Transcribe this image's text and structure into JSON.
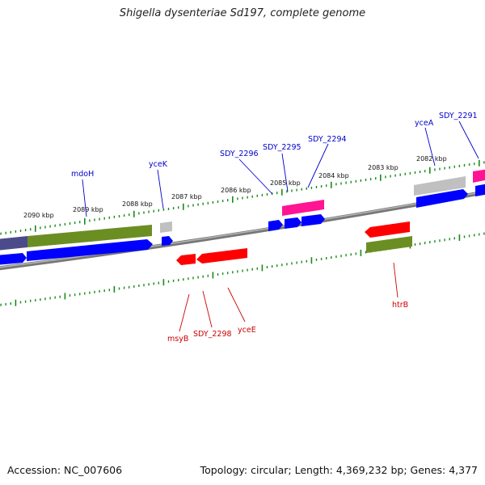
{
  "title": "Shigella dysenteriae Sd197, complete genome",
  "footer": {
    "accession": "Accession: NC_007606",
    "summary": "Topology: circular; Length: 4,369,232 bp; Genes: 4,377"
  },
  "colors": {
    "forward_label": "#0000cc",
    "reverse_label": "#cc0000",
    "tick": "#1a8a1a",
    "backbone": "#888888",
    "blue_gene": "#0000ff",
    "red_gene": "#ff0000",
    "olive_feature": "#6b8e23",
    "magenta_feature": "#ff1493",
    "grey_feature": "#c0c0c0",
    "slate_feature": "#4b4b8c"
  },
  "ruler": [
    "2090 kbp",
    "2089 kbp",
    "2088 kbp",
    "2087 kbp",
    "2086 kbp",
    "2085 kbp",
    "2084 kbp",
    "2083 kbp",
    "2082 kbp"
  ],
  "forward_genes": [
    "mdoH",
    "yceK",
    "SDY_2296",
    "SDY_2295",
    "SDY_2294",
    "yceA",
    "SDY_2291"
  ],
  "reverse_genes": [
    "msyB",
    "SDY_2298",
    "yceE",
    "htrB"
  ]
}
